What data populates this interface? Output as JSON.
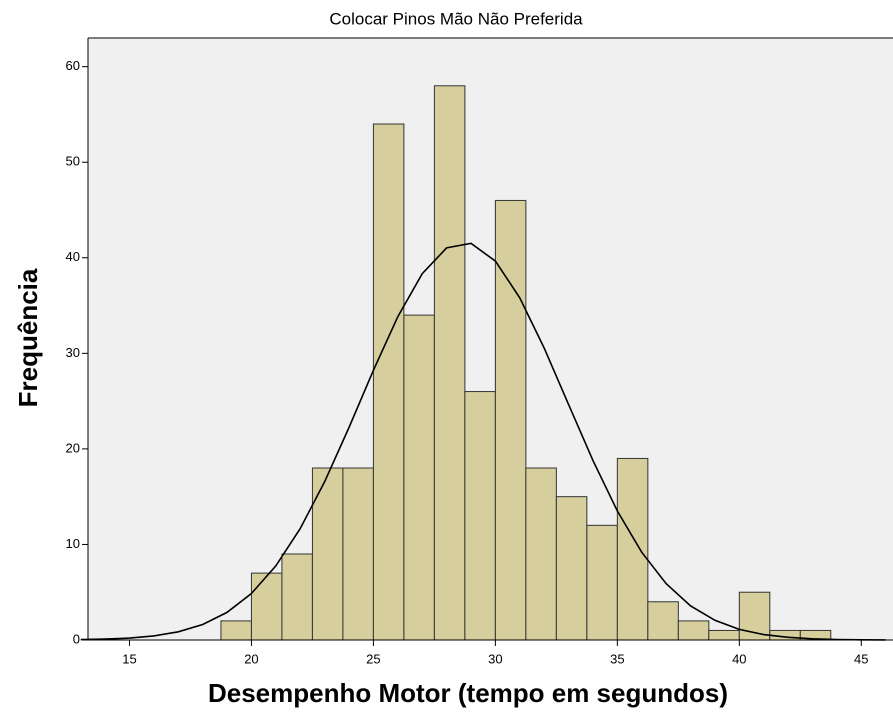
{
  "chart_data": {
    "type": "histogram",
    "title": "Colocar Pinos Mão Não Preferida",
    "xlabel": "Desempenho Motor (tempo em segundos)",
    "ylabel": "Frequência",
    "bins": [
      18.75,
      20,
      21.25,
      22.5,
      23.75,
      25,
      26.25,
      27.5,
      28.75,
      30,
      31.25,
      32.5,
      33.75,
      35,
      36.25,
      37.5,
      38.75,
      40,
      41.25,
      42.5,
      43.75
    ],
    "values": [
      2,
      7,
      9,
      18,
      18,
      54,
      34,
      58,
      26,
      46,
      18,
      15,
      12,
      19,
      4,
      2,
      1,
      5,
      1,
      1
    ],
    "color": "#d6cf9d",
    "curve": {
      "x": [
        13,
        14,
        15,
        16,
        17,
        18,
        19,
        20,
        21,
        22,
        23,
        24,
        25,
        26,
        27,
        28,
        29,
        30,
        31,
        32,
        33,
        34,
        35,
        36,
        37,
        38,
        39,
        40,
        41,
        42,
        43,
        44,
        45,
        46
      ],
      "values": [
        0.04,
        0.09,
        0.2,
        0.43,
        0.86,
        1.62,
        2.89,
        4.87,
        7.75,
        11.66,
        16.56,
        22.24,
        28.22,
        33.83,
        38.33,
        41.03,
        41.5,
        39.65,
        35.8,
        30.55,
        24.63,
        18.77,
        13.51,
        9.19,
        5.9,
        3.58,
        2.06,
        1.11,
        0.57,
        0.28,
        0.13,
        0.05,
        0.02,
        0.01
      ],
      "color": "#000000"
    },
    "xlim": [
      13.3,
      46.3
    ],
    "ylim": [
      0,
      63
    ],
    "xticks": [
      15,
      20,
      25,
      30,
      35,
      40,
      45
    ],
    "yticks": [
      0,
      10,
      20,
      30,
      40,
      50,
      60
    ]
  }
}
